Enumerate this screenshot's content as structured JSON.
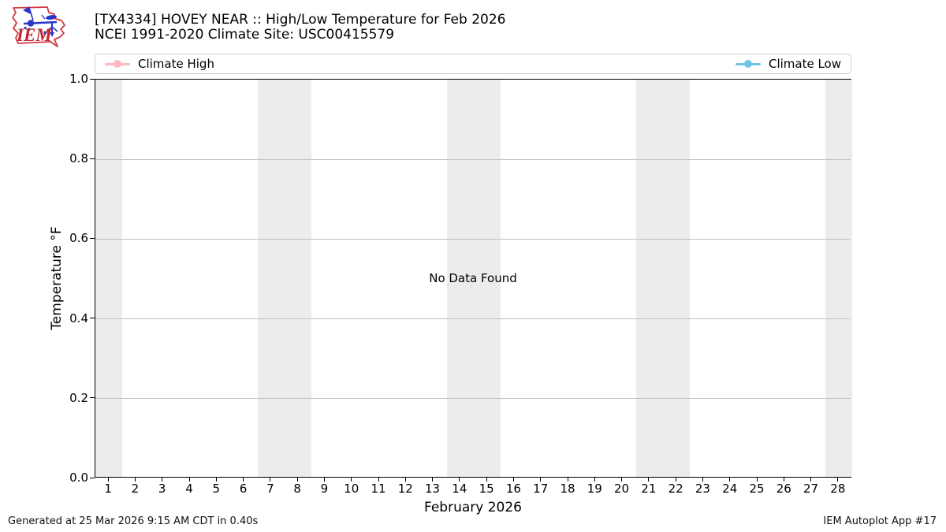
{
  "logo": {
    "text": "IEM"
  },
  "header": {
    "title_line1": "[TX4334] HOVEY NEAR :: High/Low Temperature for Feb 2026",
    "title_line2": "NCEI 1991-2020 Climate Site: USC00415579"
  },
  "legend": {
    "entries": [
      {
        "label": "Climate High",
        "color": "#ffb6c1"
      },
      {
        "label": "Climate Low",
        "color": "#6ec6e4"
      }
    ]
  },
  "chart_data": {
    "type": "line",
    "title": "[TX4334] HOVEY NEAR :: High/Low Temperature for Feb 2026",
    "subtitle": "NCEI 1991-2020 Climate Site: USC00415579",
    "xlabel": "February 2026",
    "ylabel": "Temperature °F",
    "xlim": [
      0.5,
      28.5
    ],
    "ylim": [
      0.0,
      1.0
    ],
    "xticks": [
      1,
      2,
      3,
      4,
      5,
      6,
      7,
      8,
      9,
      10,
      11,
      12,
      13,
      14,
      15,
      16,
      17,
      18,
      19,
      20,
      21,
      22,
      23,
      24,
      25,
      26,
      27,
      28
    ],
    "xtick_labels": [
      "1",
      "2",
      "3",
      "4",
      "5",
      "6",
      "7",
      "8",
      "9",
      "10",
      "11",
      "12",
      "13",
      "14",
      "15",
      "16",
      "17",
      "18",
      "19",
      "20",
      "21",
      "22",
      "23",
      "24",
      "25",
      "26",
      "27",
      "28"
    ],
    "yticks": [
      0.0,
      0.2,
      0.4,
      0.6,
      0.8,
      1.0
    ],
    "ytick_labels": [
      "0.0",
      "0.2",
      "0.4",
      "0.6",
      "0.8",
      "1.0"
    ],
    "grid": true,
    "grid_color": "#c0c0c0",
    "band_color": "#ececec",
    "weekend_bands": [
      [
        0.5,
        1.5
      ],
      [
        6.5,
        8.5
      ],
      [
        13.5,
        15.5
      ],
      [
        20.5,
        22.5
      ],
      [
        27.5,
        28.5
      ]
    ],
    "series": [
      {
        "name": "Climate High",
        "color": "#ffb6c1",
        "x": [],
        "values": []
      },
      {
        "name": "Climate Low",
        "color": "#6ec6e4",
        "x": [],
        "values": []
      }
    ],
    "no_data_text": "No Data Found",
    "legend_position": "top-expand"
  },
  "footer": {
    "left": "Generated at 25 Mar 2026 9:15 AM CDT in 0.40s",
    "right": "IEM Autoplot App #17"
  }
}
